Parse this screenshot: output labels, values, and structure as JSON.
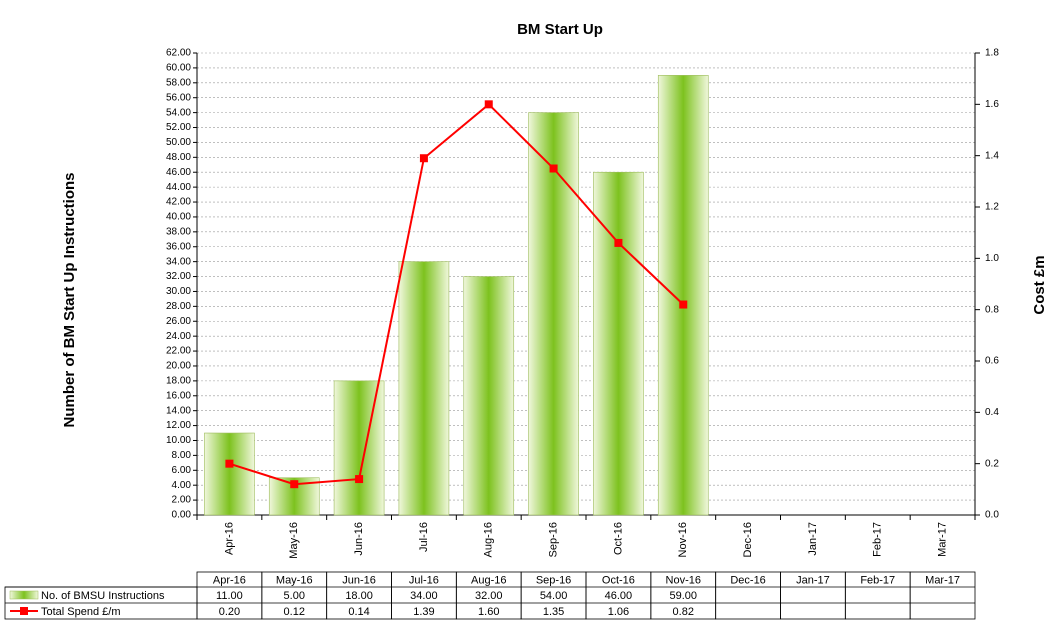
{
  "chart_data": {
    "type": "bar_line",
    "title": "BM Start Up",
    "y_label": "Number of BM Start Up Instructions",
    "y2_label": "Cost £m",
    "categories": [
      "Apr-16",
      "May-16",
      "Jun-16",
      "Jul-16",
      "Aug-16",
      "Sep-16",
      "Oct-16",
      "Nov-16",
      "Dec-16",
      "Jan-17",
      "Feb-17",
      "Mar-17"
    ],
    "series": [
      {
        "name": "No. of BMSU Instructions",
        "type": "bar",
        "color": "#7dc21e",
        "values": [
          11,
          5,
          18,
          34,
          32,
          54,
          46,
          59,
          null,
          null,
          null,
          null
        ],
        "value_labels": [
          "11.00",
          "5.00",
          "18.00",
          "34.00",
          "32.00",
          "54.00",
          "46.00",
          "59.00",
          null,
          null,
          null,
          null
        ]
      },
      {
        "name": "Total Spend £/m",
        "type": "line",
        "axis": "y2",
        "color": "#ff0000",
        "values": [
          0.2,
          0.12,
          0.14,
          1.39,
          1.6,
          1.35,
          1.06,
          0.82,
          null,
          null,
          null,
          null
        ],
        "value_labels": [
          "0.20",
          "0.12",
          "0.14",
          "1.39",
          "1.60",
          "1.35",
          "1.06",
          "0.82",
          null,
          null,
          null,
          null
        ]
      }
    ],
    "ylim": [
      0,
      62
    ],
    "yticks": [
      {
        "value": 0,
        "label": "0.00"
      },
      {
        "value": 2,
        "label": "2.00"
      },
      {
        "value": 4,
        "label": "4.00"
      },
      {
        "value": 6,
        "label": "6.00"
      },
      {
        "value": 8,
        "label": "8.00"
      },
      {
        "value": 10,
        "label": "10.00"
      },
      {
        "value": 12,
        "label": "12.00"
      },
      {
        "value": 14,
        "label": "14.00"
      },
      {
        "value": 16,
        "label": "16.00"
      },
      {
        "value": 18,
        "label": "18.00"
      },
      {
        "value": 20,
        "label": "20.00"
      },
      {
        "value": 22,
        "label": "22.00"
      },
      {
        "value": 24,
        "label": "24.00"
      },
      {
        "value": 26,
        "label": "26.00"
      },
      {
        "value": 28,
        "label": "28.00"
      },
      {
        "value": 30,
        "label": "30.00"
      },
      {
        "value": 32,
        "label": "32.00"
      },
      {
        "value": 34,
        "label": "34.00"
      },
      {
        "value": 36,
        "label": "36.00"
      },
      {
        "value": 38,
        "label": "38.00"
      },
      {
        "value": 40,
        "label": "40.00"
      },
      {
        "value": 42,
        "label": "42.00"
      },
      {
        "value": 44,
        "label": "44.00"
      },
      {
        "value": 46,
        "label": "46.00"
      },
      {
        "value": 48,
        "label": "48.00"
      },
      {
        "value": 50,
        "label": "50.00"
      },
      {
        "value": 52,
        "label": "52.00"
      },
      {
        "value": 54,
        "label": "54.00"
      },
      {
        "value": 56,
        "label": "56.00"
      },
      {
        "value": 58,
        "label": "58.00"
      },
      {
        "value": 60,
        "label": "60.00"
      },
      {
        "value": 62,
        "label": "62.00"
      }
    ],
    "y2lim": [
      0,
      1.8
    ],
    "y2ticks": [
      {
        "value": 0,
        "label": "0.0"
      },
      0.2,
      0.4,
      0.6,
      0.8,
      {
        "value": 1,
        "label": "1.0"
      },
      1.2,
      1.4,
      1.6,
      1.8
    ],
    "grid": true
  }
}
